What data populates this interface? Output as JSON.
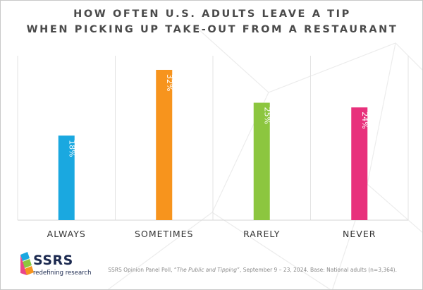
{
  "title_lines": [
    "HOW OFTEN U.S. ADULTS LEAVE A TIP",
    "WHEN PICKING UP TAKE-OUT FROM A RESTAURANT"
  ],
  "chart_data": {
    "type": "bar",
    "title": "HOW OFTEN U.S. ADULTS LEAVE A TIP WHEN PICKING UP TAKE-OUT FROM A RESTAURANT",
    "categories": [
      "ALWAYS",
      "SOMETIMES",
      "RARELY",
      "NEVER"
    ],
    "values": [
      18,
      32,
      25,
      24
    ],
    "data_labels": [
      "18%",
      "32%",
      "25%",
      "24%"
    ],
    "colors": [
      "#1aa8e0",
      "#f7941d",
      "#8cc63f",
      "#e8317c"
    ],
    "ylim": [
      0,
      35
    ],
    "grid": "vertical",
    "legend": "none"
  },
  "logo": {
    "name": "SSRS",
    "wordmark": "SSRS",
    "tagline": "redefining research"
  },
  "source": {
    "prefix": "SSRS Opinion Panel Poll, “",
    "title": "The Public and Tipping",
    "suffix": "”, September 9 – 23, 2024. Base: National adults (n=3,364)."
  }
}
